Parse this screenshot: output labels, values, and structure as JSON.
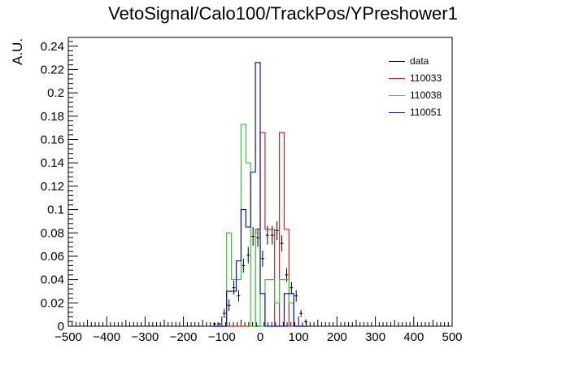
{
  "chart_data": {
    "type": "histogram",
    "title": "VetoSignal/Calo100/TrackPos/YPreshower1",
    "xlabel": "",
    "ylabel": "A.U.",
    "xlim": [
      -500,
      500
    ],
    "ylim": [
      0,
      0.2475
    ],
    "x_ticks": [
      -500,
      -400,
      -300,
      -200,
      -100,
      0,
      100,
      200,
      300,
      400,
      500
    ],
    "y_ticks": [
      0,
      0.02,
      0.04,
      0.06,
      0.08,
      0.1,
      0.12,
      0.14,
      0.16,
      0.18,
      0.2,
      0.22,
      0.24
    ],
    "bin_width": 12.5,
    "legend_position": "top-right",
    "grid": false,
    "series": [
      {
        "name": "data",
        "color": "#000000",
        "style": "errorbars",
        "bin_starts": [
          -125,
          -112.5,
          -100,
          -87.5,
          -75,
          -62.5,
          -50,
          -37.5,
          -25,
          -12.5,
          0,
          12.5,
          25,
          37.5,
          50,
          62.5,
          75,
          87.5,
          100,
          112.5
        ],
        "values": [
          0.002,
          0.002,
          0.011,
          0.018,
          0.033,
          0.026,
          0.052,
          0.061,
          0.077,
          0.076,
          0.058,
          0.078,
          0.078,
          0.082,
          0.071,
          0.044,
          0.033,
          0.026,
          0.011,
          0.004
        ],
        "errors": [
          0.001,
          0.001,
          0.004,
          0.005,
          0.006,
          0.005,
          0.006,
          0.007,
          0.008,
          0.008,
          0.007,
          0.008,
          0.008,
          0.008,
          0.007,
          0.006,
          0.005,
          0.005,
          0.003,
          0.002
        ]
      },
      {
        "name": "110033",
        "color": "#e02020",
        "style": "step",
        "bin_starts": [
          -125,
          -112.5,
          -100,
          -87.5,
          -75,
          -62.5,
          -50,
          -37.5,
          -25,
          -12.5,
          0,
          12.5,
          25,
          37.5,
          50,
          62.5,
          75,
          87.5,
          100,
          112.5
        ],
        "values": [
          0,
          0,
          0,
          0,
          0,
          0,
          0,
          0,
          0,
          0.083,
          0.166,
          0.083,
          0.083,
          0,
          0.166,
          0.083,
          0,
          0,
          0,
          0
        ]
      },
      {
        "name": "110038",
        "color": "#30d030",
        "style": "step",
        "bin_starts": [
          -125,
          -112.5,
          -100,
          -87.5,
          -75,
          -62.5,
          -50,
          -37.5,
          -25,
          -12.5,
          0,
          12.5,
          25,
          37.5,
          50,
          62.5,
          75,
          87.5,
          100,
          112.5
        ],
        "values": [
          0,
          0,
          0,
          0.08,
          0.04,
          0.04,
          0.173,
          0.14,
          0,
          0.08,
          0,
          0.04,
          0.04,
          0.02,
          0.04,
          0.04,
          0.02,
          0,
          0,
          0
        ]
      },
      {
        "name": "110051",
        "color": "#1010c0",
        "style": "step",
        "bin_starts": [
          -125,
          -112.5,
          -100,
          -87.5,
          -75,
          -62.5,
          -50,
          -37.5,
          -25,
          -12.5,
          0,
          12.5,
          25,
          37.5,
          50,
          62.5,
          75,
          87.5,
          100,
          112.5
        ],
        "values": [
          0,
          0,
          0,
          0.03,
          0.03,
          0.056,
          0.1,
          0.085,
          0.132,
          0.226,
          0.028,
          0,
          0,
          0,
          0,
          0.028,
          0.028,
          0,
          0,
          0
        ]
      }
    ]
  }
}
